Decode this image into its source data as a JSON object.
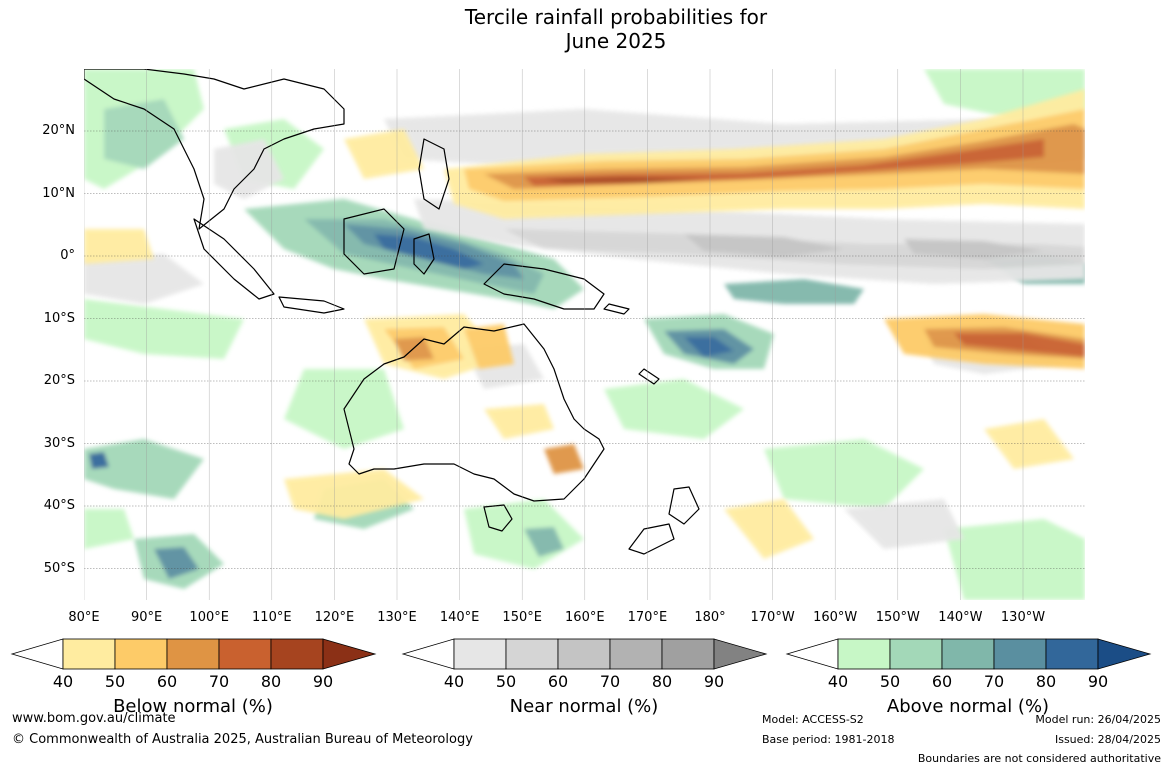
{
  "title": {
    "line1": "Tercile rainfall probabilities for",
    "line2": "June 2025"
  },
  "lat_labels": [
    "20°N",
    "10°N",
    "0°",
    "10°S",
    "20°S",
    "30°S",
    "40°S",
    "50°S"
  ],
  "lon_labels": [
    "80°E",
    "90°E",
    "100°E",
    "110°E",
    "120°E",
    "130°E",
    "140°E",
    "150°E",
    "160°E",
    "170°E",
    "180°",
    "170°W",
    "160°W",
    "150°W",
    "140°W",
    "130°W"
  ],
  "legends": {
    "below": {
      "title": "Below normal (%)",
      "ticks": [
        "40",
        "50",
        "60",
        "70",
        "80",
        "90"
      ],
      "colors": [
        "#ffffff",
        "#ffeca0",
        "#fdcb68",
        "#df9444",
        "#c9612f",
        "#a6441f",
        "#8b3016"
      ]
    },
    "near": {
      "title": "Near normal (%)",
      "ticks": [
        "40",
        "50",
        "60",
        "70",
        "80",
        "90"
      ],
      "colors": [
        "#ffffff",
        "#e6e6e6",
        "#d5d5d5",
        "#c4c4c4",
        "#b2b2b2",
        "#a0a0a0",
        "#828282"
      ]
    },
    "above": {
      "title": "Above normal (%)",
      "ticks": [
        "40",
        "50",
        "60",
        "70",
        "80",
        "90"
      ],
      "colors": [
        "#ffffff",
        "#c7f7c6",
        "#a3d8b8",
        "#80b7aa",
        "#5a8fa0",
        "#32679a",
        "#1b4d86"
      ]
    }
  },
  "footer": {
    "url": "www.bom.gov.au/climate",
    "copyright": "© Commonwealth of Australia 2025, Australian Bureau of Meteorology",
    "model": "Model: ACCESS-S2",
    "base_period": "Base period: 1981-2018",
    "model_run": "Model run: 26/04/2025",
    "issued": "Issued: 28/04/2025",
    "boundaries_note": "Boundaries are not considered authoritative"
  }
}
